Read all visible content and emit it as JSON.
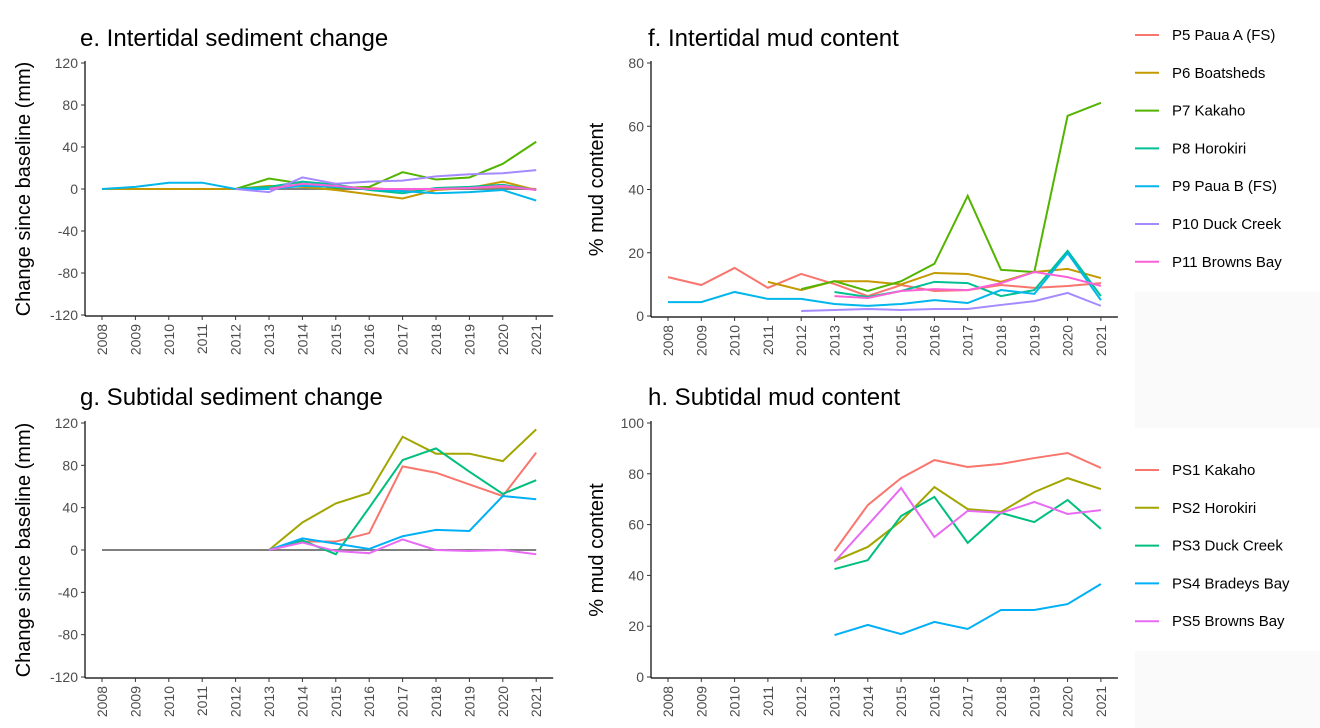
{
  "chart_data": [
    {
      "type": "line",
      "title": "e. Intertidal sediment change",
      "ylabel": "Change since baseline (mm)",
      "categories": [
        "2008",
        "2009",
        "2010",
        "2011",
        "2012",
        "2013",
        "2014",
        "2015",
        "2016",
        "2017",
        "2018",
        "2019",
        "2020",
        "2021"
      ],
      "ylim": [
        -120,
        120
      ],
      "yticks": [
        -120,
        -80,
        -40,
        0,
        40,
        80,
        120
      ],
      "zeroline": true,
      "legend": false,
      "series": [
        {
          "name": "P5 Paua A (FS)",
          "color": "#F8766D",
          "values": [
            null,
            null,
            null,
            null,
            0,
            2,
            3,
            2,
            1,
            -1,
            0,
            1,
            2,
            0
          ]
        },
        {
          "name": "P6 Boatsheds",
          "color": "#C49A00",
          "values": [
            0,
            0,
            0,
            0,
            0,
            3,
            2,
            -1,
            -5,
            -9,
            -1,
            1,
            7,
            -1
          ]
        },
        {
          "name": "P7 Kakaho",
          "color": "#53B400",
          "values": [
            null,
            null,
            null,
            null,
            0,
            10,
            5,
            1,
            2,
            16,
            9,
            11,
            24,
            45
          ]
        },
        {
          "name": "P8 Horokiri",
          "color": "#00C094",
          "values": [
            null,
            null,
            null,
            null,
            0,
            2,
            7,
            4,
            -1,
            -4,
            1,
            2,
            4,
            -1
          ]
        },
        {
          "name": "P9 Paua B (FS)",
          "color": "#00B6EB",
          "values": [
            0,
            2,
            6,
            6,
            0,
            0,
            3,
            2,
            0,
            -2,
            -4,
            -3,
            -1,
            -11
          ]
        },
        {
          "name": "P10 Duck Creek",
          "color": "#A58AFF",
          "values": [
            null,
            null,
            null,
            null,
            0,
            -3,
            11,
            5,
            7,
            8,
            12,
            14,
            15,
            18
          ]
        },
        {
          "name": "P11 Browns Bay",
          "color": "#FB61D7",
          "values": [
            null,
            null,
            null,
            null,
            null,
            0,
            5,
            3,
            0,
            0,
            0,
            1,
            3,
            -1
          ]
        }
      ]
    },
    {
      "type": "line",
      "title": "f. Intertidal mud content",
      "ylabel": "% mud content",
      "categories": [
        "2008",
        "2009",
        "2010",
        "2011",
        "2012",
        "2013",
        "2014",
        "2015",
        "2016",
        "2017",
        "2018",
        "2019",
        "2020",
        "2021"
      ],
      "ylim": [
        0,
        80
      ],
      "yticks": [
        0,
        20,
        40,
        60,
        80
      ],
      "zeroline": false,
      "legend": "right",
      "series": [
        {
          "name": "P5 Paua A (FS)",
          "color": "#F8766D",
          "values": [
            12.3,
            9.8,
            15.2,
            8.9,
            13.3,
            10.1,
            6.3,
            9.8,
            7.9,
            8.2,
            9.8,
            8.9,
            9.5,
            10.4
          ]
        },
        {
          "name": "P6 Boatsheds",
          "color": "#C49A00",
          "values": [
            null,
            null,
            null,
            10.8,
            8.2,
            11,
            11,
            10,
            13.6,
            13.3,
            10.8,
            13.9,
            14.9,
            12
          ]
        },
        {
          "name": "P7 Kakaho",
          "color": "#53B400",
          "values": [
            null,
            null,
            null,
            null,
            8.5,
            11,
            7.9,
            11,
            16.5,
            38,
            14.6,
            13.9,
            63.3,
            67.4
          ]
        },
        {
          "name": "P8 Horokiri",
          "color": "#00C094",
          "values": [
            null,
            null,
            null,
            null,
            null,
            7.6,
            6,
            7.9,
            10.8,
            10.4,
            6.3,
            8.2,
            20.6,
            6.3
          ]
        },
        {
          "name": "P9 Paua B (FS)",
          "color": "#00B6EB",
          "values": [
            4.4,
            4.4,
            7.6,
            5.4,
            5.4,
            3.8,
            3.2,
            3.8,
            5,
            4.1,
            8.2,
            7,
            19.9,
            5
          ]
        },
        {
          "name": "P10 Duck Creek",
          "color": "#A58AFF",
          "values": [
            null,
            null,
            null,
            null,
            1.6,
            1.9,
            2.2,
            1.9,
            2.2,
            2.2,
            3.5,
            4.7,
            7.3,
            3.2
          ]
        },
        {
          "name": "P11 Browns Bay",
          "color": "#FB61D7",
          "values": [
            null,
            null,
            null,
            null,
            null,
            6.3,
            5.7,
            7.9,
            8.5,
            8.2,
            10.4,
            13.9,
            12.3,
            9.5
          ]
        }
      ]
    },
    {
      "type": "line",
      "title": "g. Subtidal sediment change",
      "ylabel": "Change since baseline (mm)",
      "categories": [
        "2008",
        "2009",
        "2010",
        "2011",
        "2012",
        "2013",
        "2014",
        "2015",
        "2016",
        "2017",
        "2018",
        "2019",
        "2020",
        "2021"
      ],
      "ylim": [
        -120,
        120
      ],
      "yticks": [
        -120,
        -80,
        -40,
        0,
        40,
        80,
        120
      ],
      "zeroline": true,
      "legend": false,
      "series": [
        {
          "name": "PS1 Kakaho",
          "color": "#F8766D",
          "values": [
            null,
            null,
            null,
            null,
            null,
            0,
            8,
            8,
            16,
            79,
            73,
            62,
            51,
            92
          ]
        },
        {
          "name": "PS2 Horokiri",
          "color": "#A3A500",
          "values": [
            null,
            null,
            null,
            null,
            null,
            0,
            26,
            44,
            54,
            107,
            91,
            91,
            84,
            114
          ]
        },
        {
          "name": "PS3 Duck Creek",
          "color": "#00BF7D",
          "values": [
            null,
            null,
            null,
            null,
            null,
            0,
            9,
            -4,
            40,
            85,
            96,
            74,
            53,
            66
          ]
        },
        {
          "name": "PS4 Bradeys Bay",
          "color": "#00B0F6",
          "values": [
            null,
            null,
            null,
            null,
            null,
            0,
            11,
            6,
            1,
            13,
            19,
            18,
            51,
            48
          ]
        },
        {
          "name": "PS5 Browns Bay",
          "color": "#E76BF3",
          "values": [
            null,
            null,
            null,
            null,
            null,
            0,
            7,
            -1,
            -3,
            10,
            0,
            -1,
            0,
            -4
          ]
        }
      ]
    },
    {
      "type": "line",
      "title": "h. Subtidal mud content",
      "ylabel": "% mud content",
      "categories": [
        "2008",
        "2009",
        "2010",
        "2011",
        "2012",
        "2013",
        "2014",
        "2015",
        "2016",
        "2017",
        "2018",
        "2019",
        "2020",
        "2021"
      ],
      "ylim": [
        0,
        100
      ],
      "yticks": [
        0,
        20,
        40,
        60,
        80,
        100
      ],
      "zeroline": false,
      "legend": "right",
      "series": [
        {
          "name": "PS1 Kakaho",
          "color": "#F8766D",
          "values": [
            null,
            null,
            null,
            null,
            null,
            49.6,
            67.7,
            78.3,
            85.4,
            82.7,
            83.9,
            86.2,
            88.2,
            82.3
          ]
        },
        {
          "name": "PS2 Horokiri",
          "color": "#A3A500",
          "values": [
            null,
            null,
            null,
            null,
            null,
            45.7,
            51.2,
            61.4,
            74.8,
            66.1,
            65,
            72.8,
            78.3,
            74
          ]
        },
        {
          "name": "PS3 Duck Creek",
          "color": "#00BF7D",
          "values": [
            null,
            null,
            null,
            null,
            null,
            42.5,
            46,
            63.4,
            70.9,
            52.8,
            64.6,
            61,
            69.7,
            58.3
          ]
        },
        {
          "name": "PS4 Bradeys Bay",
          "color": "#00B0F6",
          "values": [
            null,
            null,
            null,
            null,
            null,
            16.5,
            20.5,
            16.9,
            21.7,
            18.9,
            26.4,
            26.4,
            28.7,
            36.6
          ]
        },
        {
          "name": "PS5 Browns Bay",
          "color": "#E76BF3",
          "values": [
            null,
            null,
            null,
            null,
            null,
            45.3,
            59.8,
            74.4,
            55.1,
            65.4,
            64.6,
            68.9,
            64.2,
            65.7
          ]
        }
      ]
    }
  ]
}
